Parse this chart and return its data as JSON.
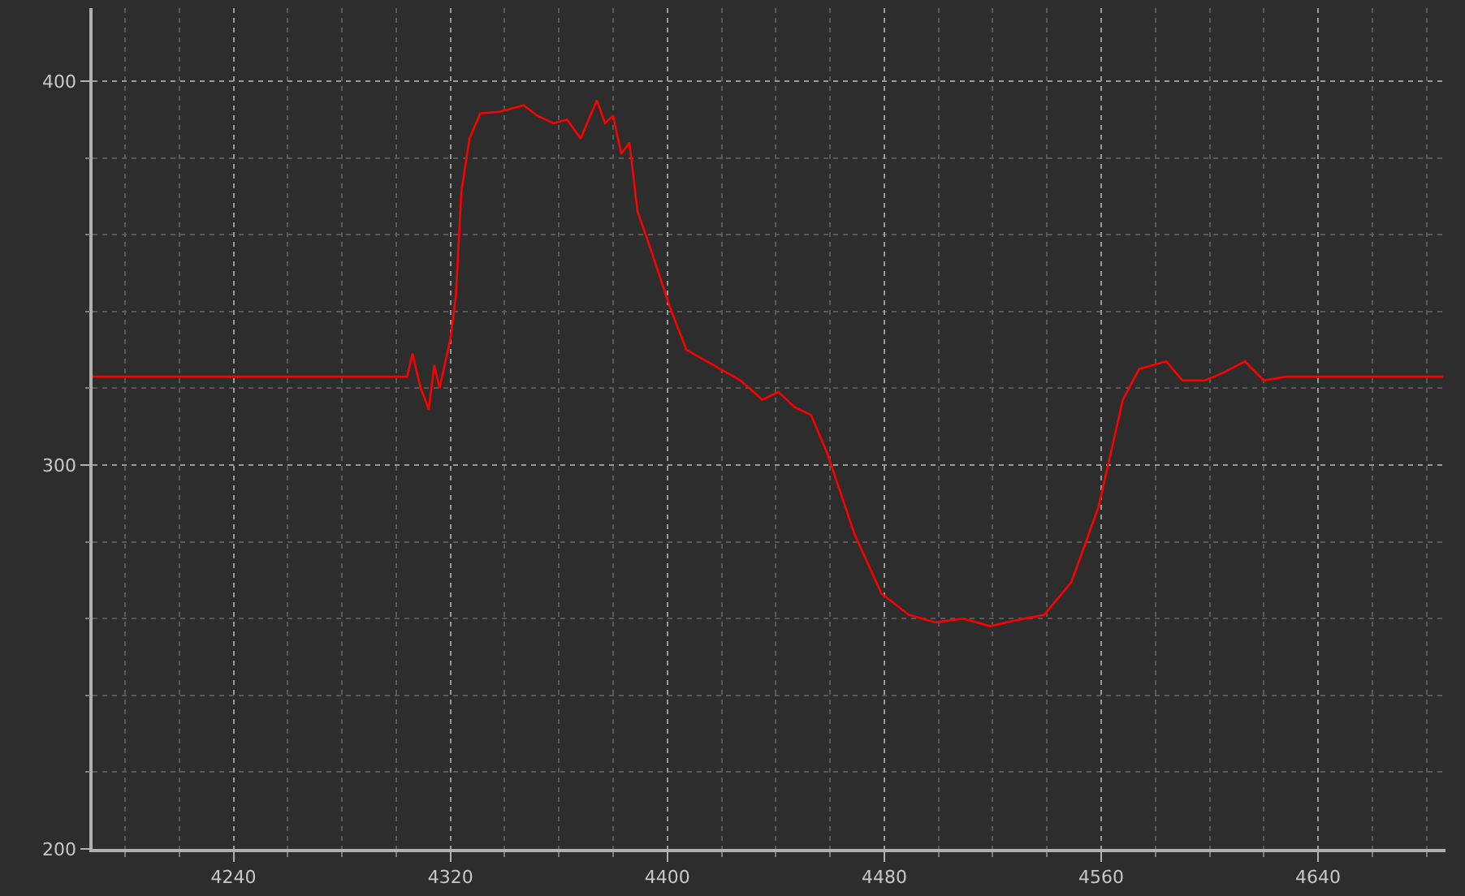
{
  "chart_data": {
    "type": "line",
    "x": [
      4188,
      4230,
      4270,
      4304,
      4306,
      4309,
      4312,
      4314,
      4316,
      4320,
      4322,
      4324,
      4327,
      4331,
      4338,
      4347,
      4352,
      4358,
      4363,
      4368,
      4374,
      4377,
      4380,
      4383,
      4386,
      4389,
      4393,
      4401,
      4407,
      4417,
      4427,
      4435,
      4441,
      4447,
      4453,
      4459,
      4469,
      4479,
      4489,
      4499,
      4509,
      4519,
      4529,
      4539,
      4549,
      4559,
      4568,
      4574,
      4584,
      4590,
      4598,
      4605,
      4613,
      4620,
      4628,
      4650,
      4686
    ],
    "series": [
      {
        "color": "#ff0000",
        "values": [
          323,
          323,
          323,
          323,
          329,
          320,
          314.5,
          326,
          320,
          333,
          344,
          371,
          385,
          391.6,
          392,
          393.7,
          391,
          389,
          390,
          385,
          395,
          389,
          391,
          381,
          384,
          366,
          358,
          341,
          330,
          326,
          322,
          317,
          319,
          315,
          313,
          303,
          282,
          266.5,
          261,
          259,
          260,
          258,
          259.6,
          261,
          269.5,
          289,
          317,
          325,
          327,
          322,
          322,
          324,
          327,
          322,
          323,
          323,
          323
        ]
      }
    ],
    "xlim": [
      4188,
      4687
    ],
    "ylim": [
      200,
      419
    ],
    "xticks": [
      {
        "value": 4200,
        "label": null
      },
      {
        "value": 4220,
        "label": null
      },
      4240,
      {
        "value": 4260,
        "label": null
      },
      {
        "value": 4280,
        "label": null
      },
      {
        "value": 4300,
        "label": null
      },
      4320,
      {
        "value": 4340,
        "label": null
      },
      {
        "value": 4360,
        "label": null
      },
      {
        "value": 4380,
        "label": null
      },
      4400,
      {
        "value": 4420,
        "label": null
      },
      {
        "value": 4440,
        "label": null
      },
      {
        "value": 4460,
        "label": null
      },
      4480,
      {
        "value": 4500,
        "label": null
      },
      {
        "value": 4520,
        "label": null
      },
      {
        "value": 4540,
        "label": null
      },
      4560,
      {
        "value": 4580,
        "label": null
      },
      {
        "value": 4600,
        "label": null
      },
      {
        "value": 4620,
        "label": null
      },
      4640,
      {
        "value": 4660,
        "label": null
      },
      {
        "value": 4680,
        "label": null
      }
    ],
    "yticks": [
      200,
      {
        "value": 220,
        "label": null
      },
      {
        "value": 240,
        "label": null
      },
      {
        "value": 260,
        "label": null
      },
      {
        "value": 280,
        "label": null
      },
      300,
      {
        "value": 320,
        "label": null
      },
      {
        "value": 340,
        "label": null
      },
      {
        "value": 360,
        "label": null
      },
      {
        "value": 380,
        "label": null
      },
      400
    ],
    "grid": true,
    "legend": false,
    "marker": "none",
    "line_style": "solid"
  }
}
